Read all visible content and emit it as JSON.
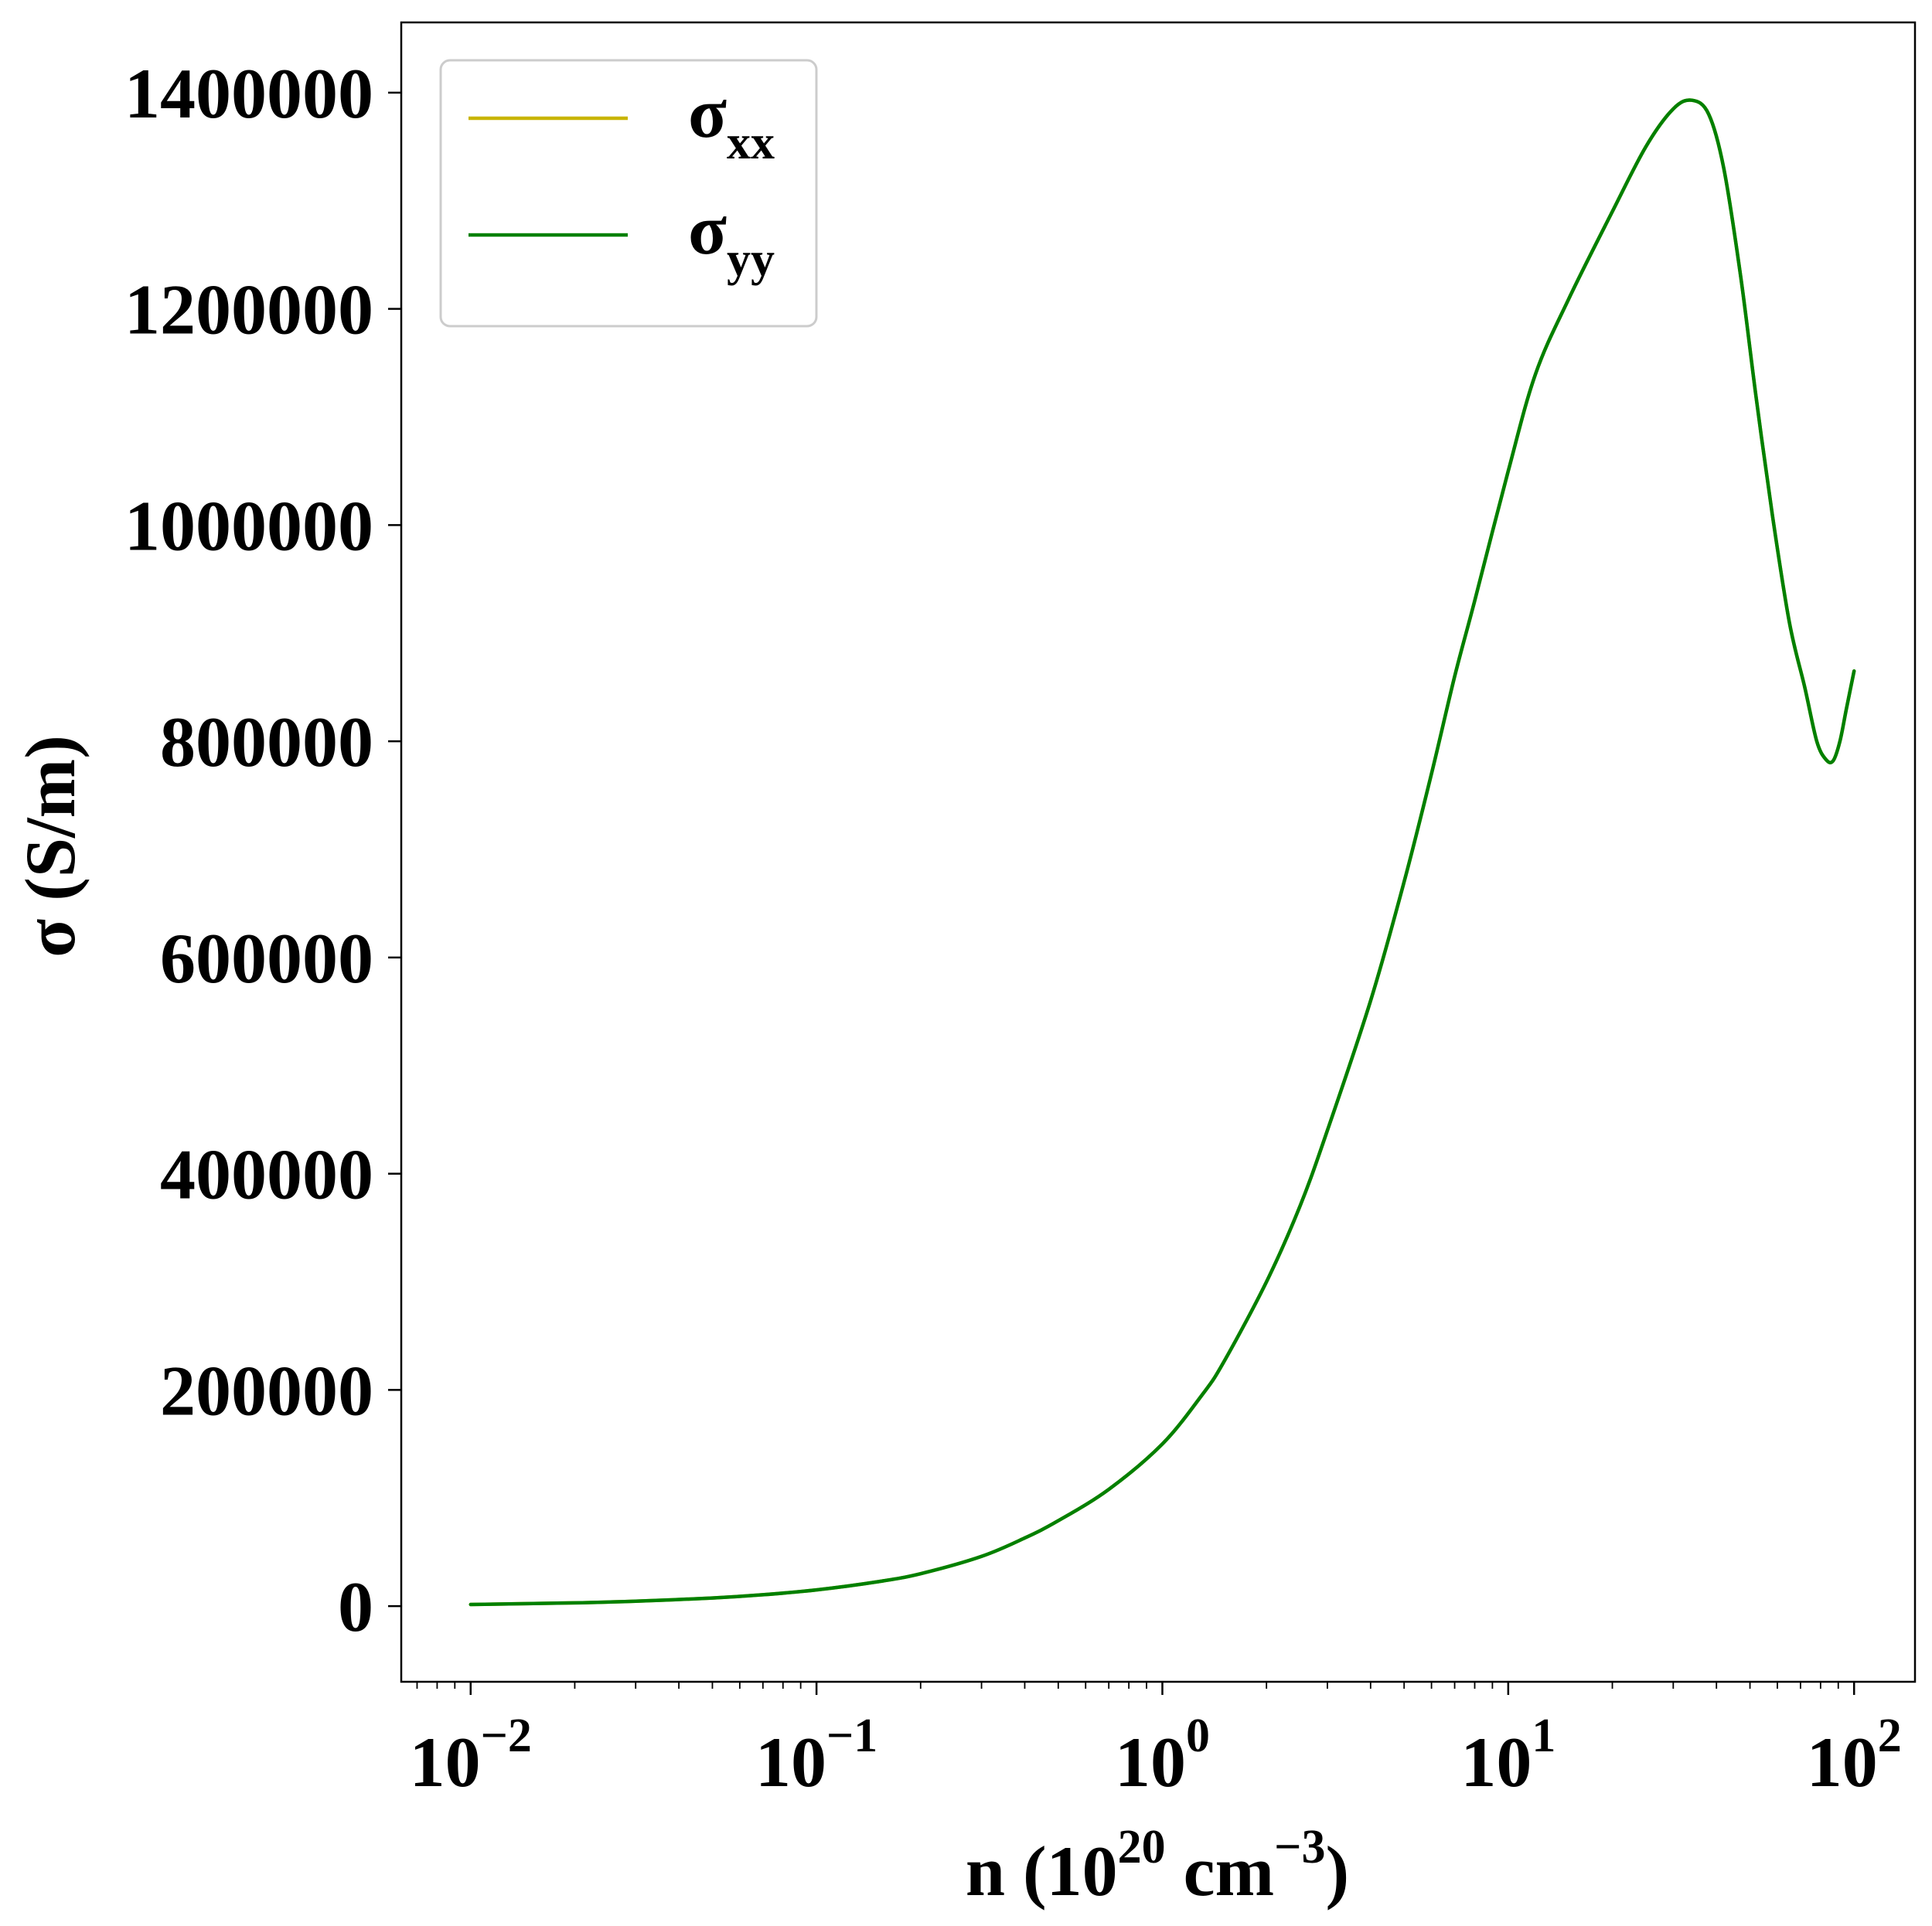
{
  "chart_data": {
    "type": "line",
    "xscale": "log",
    "xlim": [
      0.0063,
      150
    ],
    "ylim": [
      -70000,
      1465000
    ],
    "xlabel": {
      "prefix": "n (10",
      "exp1": "20",
      "mid": " cm",
      "exp2": "−3",
      "suffix": ")"
    },
    "ylabel": "σ (S/m)",
    "grid": false,
    "legend": {
      "placement": "upper-left",
      "entries": [
        {
          "symbol": "σ",
          "subscript": "xx",
          "color": "#c8b400"
        },
        {
          "symbol": "σ",
          "subscript": "yy",
          "color": "#008000"
        }
      ]
    },
    "x_ticks": [
      {
        "value": 0.01,
        "base": "10",
        "exp": "−2"
      },
      {
        "value": 0.1,
        "base": "10",
        "exp": "−1"
      },
      {
        "value": 1,
        "base": "10",
        "exp": "0"
      },
      {
        "value": 10,
        "base": "10",
        "exp": "1"
      },
      {
        "value": 100,
        "base": "10",
        "exp": "2"
      }
    ],
    "y_ticks": [
      {
        "value": 0,
        "label": "0"
      },
      {
        "value": 200000,
        "label": "200000"
      },
      {
        "value": 400000,
        "label": "400000"
      },
      {
        "value": 600000,
        "label": "600000"
      },
      {
        "value": 800000,
        "label": "800000"
      },
      {
        "value": 1000000,
        "label": "1000000"
      },
      {
        "value": 1200000,
        "label": "1200000"
      },
      {
        "value": 1400000,
        "label": "1400000"
      }
    ],
    "series": [
      {
        "name": "σxx",
        "color": "#c8b400",
        "points": [
          [
            0.01,
            1500
          ],
          [
            0.02,
            3000
          ],
          [
            0.03,
            4500
          ],
          [
            0.05,
            7500
          ],
          [
            0.07,
            10500
          ],
          [
            0.1,
            15000
          ],
          [
            0.15,
            22500
          ],
          [
            0.2,
            30000
          ],
          [
            0.3,
            46000
          ],
          [
            0.4,
            63000
          ],
          [
            0.5,
            79000
          ],
          [
            0.7,
            108000
          ],
          [
            1.0,
            150000
          ],
          [
            1.3,
            195000
          ],
          [
            1.5,
            225000
          ],
          [
            2.0,
            300000
          ],
          [
            2.5,
            370000
          ],
          [
            3.0,
            440000
          ],
          [
            4.0,
            560000
          ],
          [
            5.0,
            670000
          ],
          [
            6.0,
            770000
          ],
          [
            7.0,
            860000
          ],
          [
            8.0,
            930000
          ],
          [
            10.0,
            1050000
          ],
          [
            12.0,
            1140000
          ],
          [
            15.0,
            1210000
          ],
          [
            20.0,
            1290000
          ],
          [
            25.0,
            1350000
          ],
          [
            30.0,
            1385000
          ],
          [
            34.0,
            1393000
          ],
          [
            38.0,
            1380000
          ],
          [
            42.0,
            1330000
          ],
          [
            47.0,
            1230000
          ],
          [
            52.0,
            1120000
          ],
          [
            58.0,
            1010000
          ],
          [
            65.0,
            910000
          ],
          [
            72.0,
            850000
          ],
          [
            78.0,
            800000
          ],
          [
            83.0,
            783000
          ],
          [
            87.0,
            782000
          ],
          [
            91.0,
            800000
          ],
          [
            95.0,
            830000
          ],
          [
            100.0,
            865000
          ]
        ]
      },
      {
        "name": "σyy",
        "color": "#008000",
        "points": [
          [
            0.01,
            1500
          ],
          [
            0.02,
            3000
          ],
          [
            0.03,
            4500
          ],
          [
            0.05,
            7500
          ],
          [
            0.07,
            10500
          ],
          [
            0.1,
            15000
          ],
          [
            0.15,
            22500
          ],
          [
            0.2,
            30000
          ],
          [
            0.3,
            46000
          ],
          [
            0.4,
            63000
          ],
          [
            0.5,
            79000
          ],
          [
            0.7,
            108000
          ],
          [
            1.0,
            150000
          ],
          [
            1.3,
            195000
          ],
          [
            1.5,
            225000
          ],
          [
            2.0,
            300000
          ],
          [
            2.5,
            370000
          ],
          [
            3.0,
            440000
          ],
          [
            4.0,
            560000
          ],
          [
            5.0,
            670000
          ],
          [
            6.0,
            770000
          ],
          [
            7.0,
            860000
          ],
          [
            8.0,
            930000
          ],
          [
            10.0,
            1050000
          ],
          [
            12.0,
            1140000
          ],
          [
            15.0,
            1210000
          ],
          [
            20.0,
            1290000
          ],
          [
            25.0,
            1350000
          ],
          [
            30.0,
            1385000
          ],
          [
            34.0,
            1393000
          ],
          [
            38.0,
            1380000
          ],
          [
            42.0,
            1330000
          ],
          [
            47.0,
            1230000
          ],
          [
            52.0,
            1120000
          ],
          [
            58.0,
            1010000
          ],
          [
            65.0,
            910000
          ],
          [
            72.0,
            850000
          ],
          [
            78.0,
            800000
          ],
          [
            83.0,
            783000
          ],
          [
            87.0,
            782000
          ],
          [
            91.0,
            800000
          ],
          [
            95.0,
            830000
          ],
          [
            100.0,
            865000
          ]
        ]
      }
    ]
  }
}
